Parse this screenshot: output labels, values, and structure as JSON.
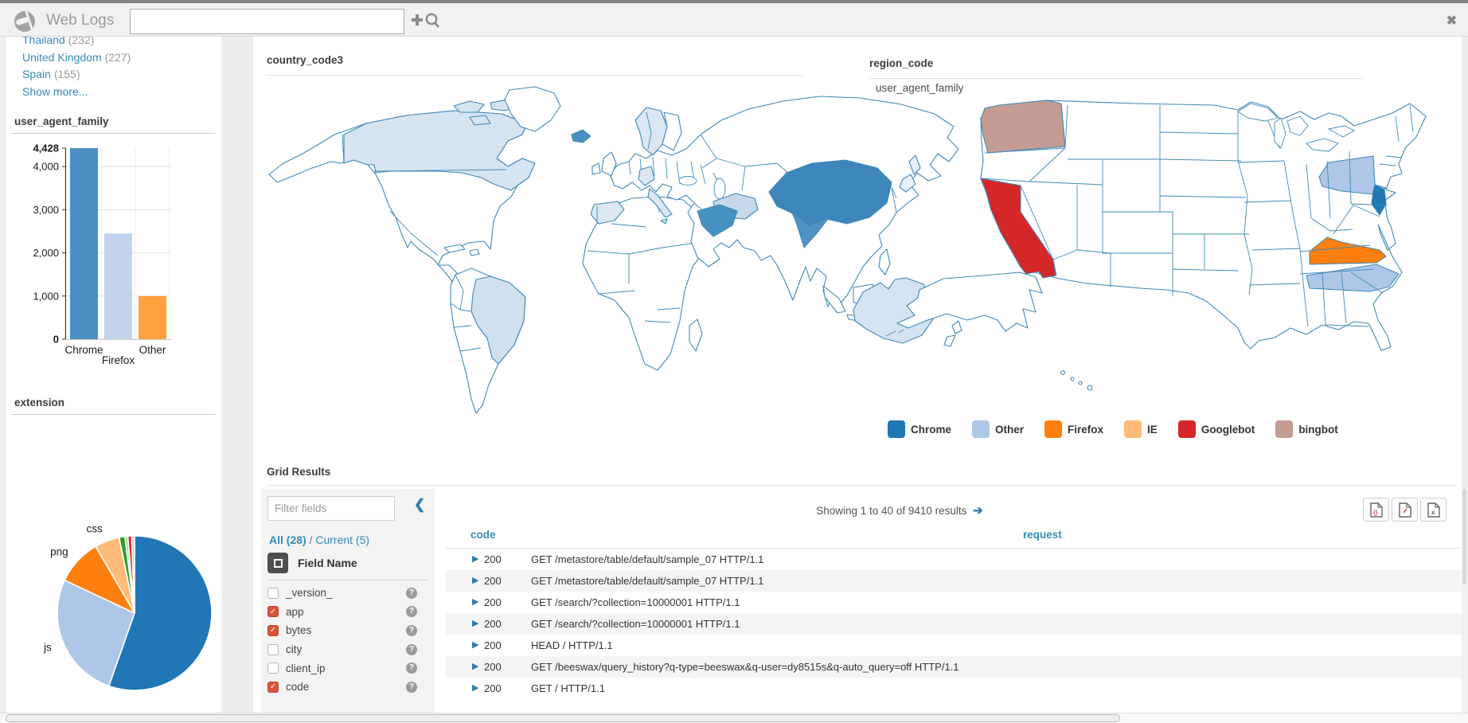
{
  "topbar": {
    "title": "Web Logs",
    "search_value": "",
    "search_placeholder": "",
    "close_glyph": "✖"
  },
  "sidebar": {
    "facets": [
      {
        "label": "Thailand",
        "count": "(232)"
      },
      {
        "label": "United Kingdom",
        "count": "(227)"
      },
      {
        "label": "Spain",
        "count": "(155)"
      },
      {
        "label": "Show more...",
        "count": ""
      }
    ]
  },
  "chart_data": [
    {
      "type": "bar",
      "title": "user_agent_family",
      "categories": [
        "Chrome",
        "Firefox",
        "Other"
      ],
      "values": [
        4428,
        2450,
        1000
      ],
      "ylim": [
        0,
        4428
      ],
      "yticks": [
        {
          "v": 0,
          "label": "0",
          "bold": true
        },
        {
          "v": 1000,
          "label": "1,000",
          "bold": false
        },
        {
          "v": 2000,
          "label": "2,000",
          "bold": false
        },
        {
          "v": 3000,
          "label": "3,000",
          "bold": false
        },
        {
          "v": 4000,
          "label": "4,000",
          "bold": false
        },
        {
          "v": 4428,
          "label": "4,428",
          "bold": true
        }
      ],
      "colors": [
        "#4a90c2",
        "#c3d3ec",
        "#ffa13d"
      ],
      "grid": true
    },
    {
      "type": "pie",
      "title": "extension",
      "slices": [
        {
          "label": "",
          "value": 55.4,
          "color": "#2176b5"
        },
        {
          "label": "js",
          "value": 26.6,
          "color": "#aec7e8"
        },
        {
          "label": "png",
          "value": 9.6,
          "color": "#ff7f0e"
        },
        {
          "label": "css",
          "value": 5.2,
          "color": "#ffbb78"
        },
        {
          "label": "",
          "value": 1.2,
          "color": "#2ca02c"
        },
        {
          "label": "",
          "value": 0.6,
          "color": "#98df8a"
        },
        {
          "label": "",
          "value": 0.8,
          "color": "#d62728"
        },
        {
          "label": "",
          "value": 0.6,
          "color": "#e8b4ba"
        }
      ]
    },
    {
      "type": "choropleth-world",
      "title": "country_code3",
      "region_fills": {
        "canada": "#d6e4f2",
        "arctic-islands": "#d6e4f2",
        "brazil": "#cfe0ef",
        "iceland": "#4792c2",
        "scandinavia": "#dbe7f3",
        "germany": "#dbe7f3",
        "spain": "#dbe7f3",
        "italy": "#dbe7f3",
        "iran": "#c6d9eb",
        "saudi": "#4792c2",
        "india": "#4f93c4",
        "china": "#3d86bc",
        "japan": "#e8f0f8",
        "australia": "#d4e3f1"
      }
    },
    {
      "type": "choropleth-us",
      "title": "region_code",
      "subtitle": "user_agent_family",
      "region_fills": {
        "wa": "#c49c94",
        "ca": "#d62728",
        "ny": "#aec7e8",
        "nj": "#1f77b4",
        "va": "#ff7f0e",
        "nc": "#aec7e8"
      },
      "legend": [
        {
          "label": "Chrome",
          "color": "#1f77b4"
        },
        {
          "label": "Other",
          "color": "#aec7e8"
        },
        {
          "label": "Firefox",
          "color": "#ff7f0e"
        },
        {
          "label": "IE",
          "color": "#ffbb78"
        },
        {
          "label": "Googlebot",
          "color": "#d62728"
        },
        {
          "label": "bingbot",
          "color": "#c49c94"
        }
      ]
    }
  ],
  "grid": {
    "title": "Grid Results",
    "filter_placeholder": "Filter fields",
    "collapse_glyph": "❮",
    "all_label": "All (28)",
    "separator": "/",
    "current_label": "Current (5)",
    "field_name_label": "Field Name",
    "fields": [
      {
        "name": "_version_",
        "checked": false
      },
      {
        "name": "app",
        "checked": true
      },
      {
        "name": "bytes",
        "checked": true
      },
      {
        "name": "city",
        "checked": false
      },
      {
        "name": "client_ip",
        "checked": false
      },
      {
        "name": "code",
        "checked": true
      }
    ],
    "help_glyph": "?",
    "showing_text": "Showing 1 to 40 of 9410 results",
    "next_glyph": "➔",
    "columns": [
      "code",
      "request"
    ],
    "rows": [
      {
        "code": "200",
        "request": "GET /metastore/table/default/sample_07 HTTP/1.1"
      },
      {
        "code": "200",
        "request": "GET /metastore/table/default/sample_07 HTTP/1.1"
      },
      {
        "code": "200",
        "request": "GET /search/?collection=10000001 HTTP/1.1"
      },
      {
        "code": "200",
        "request": "GET /search/?collection=10000001 HTTP/1.1"
      },
      {
        "code": "200",
        "request": "HEAD / HTTP/1.1"
      },
      {
        "code": "200",
        "request": "GET /beeswax/query_history?q-type=beeswax&q-user=dy8515s&q-auto_query=off HTTP/1.1"
      },
      {
        "code": "200",
        "request": "GET / HTTP/1.1"
      }
    ]
  }
}
